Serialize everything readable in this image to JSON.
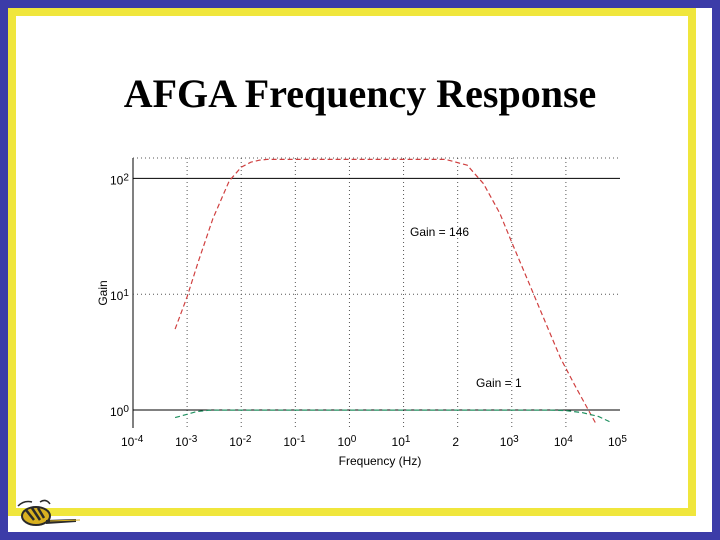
{
  "slide": {
    "title": "AFGA Frequency Response",
    "frame_color": "#3c3ca8",
    "inner_frame_color": "#f0e63c"
  },
  "chart_data": {
    "type": "line",
    "xlabel": "Frequency (Hz)",
    "ylabel": "Gain",
    "xscale": "log",
    "yscale": "log",
    "xlim": [
      0.0001,
      100000
    ],
    "ylim": [
      0.7,
      150
    ],
    "x_ticks": [
      {
        "base": "10",
        "exp": "-4"
      },
      {
        "base": "10",
        "exp": "-3"
      },
      {
        "base": "10",
        "exp": "-2"
      },
      {
        "base": "10",
        "exp": "-1"
      },
      {
        "base": "10",
        "exp": "0"
      },
      {
        "base": "10",
        "exp": "1"
      },
      {
        "base": "  2",
        "exp": ""
      },
      {
        "base": "10",
        "exp": "3"
      },
      {
        "base": "10",
        "exp": "4"
      },
      {
        "base": "10",
        "exp": "5"
      }
    ],
    "y_ticks": [
      {
        "base": "10",
        "exp": "0"
      },
      {
        "base": "10",
        "exp": "1"
      },
      {
        "base": "10",
        "exp": "2"
      }
    ],
    "grid": true,
    "annotations": [
      {
        "text": "Gain = 146"
      },
      {
        "text": "Gain = 1"
      }
    ],
    "series": [
      {
        "color": "#d04040",
        "style": "dashed",
        "points": [
          [
            0.0006,
            5.0
          ],
          [
            0.001,
            9.5
          ],
          [
            0.0016,
            19
          ],
          [
            0.003,
            45
          ],
          [
            0.006,
            95
          ],
          [
            0.01,
            125
          ],
          [
            0.015,
            138
          ],
          [
            0.022,
            144
          ],
          [
            0.03,
            146
          ],
          [
            0.8,
            146
          ],
          [
            20,
            146
          ],
          [
            60,
            146
          ],
          [
            150,
            130
          ],
          [
            300,
            90
          ],
          [
            600,
            50
          ],
          [
            1000,
            28
          ],
          [
            2000,
            13
          ],
          [
            4000,
            6
          ],
          [
            8000,
            2.8
          ],
          [
            15000,
            1.6
          ],
          [
            35000,
            0.78
          ]
        ]
      },
      {
        "color": "#209060",
        "style": "dashed",
        "points": [
          [
            0.0006,
            0.86
          ],
          [
            0.001,
            0.92
          ],
          [
            0.0015,
            0.97
          ],
          [
            0.0025,
            0.995
          ],
          [
            0.004,
            1.0
          ],
          [
            0.01,
            1.0
          ],
          [
            1000,
            1.0
          ],
          [
            5000,
            1.0
          ],
          [
            10000,
            0.99
          ],
          [
            20000,
            0.95
          ],
          [
            40000,
            0.88
          ],
          [
            70000,
            0.78
          ]
        ]
      }
    ]
  }
}
